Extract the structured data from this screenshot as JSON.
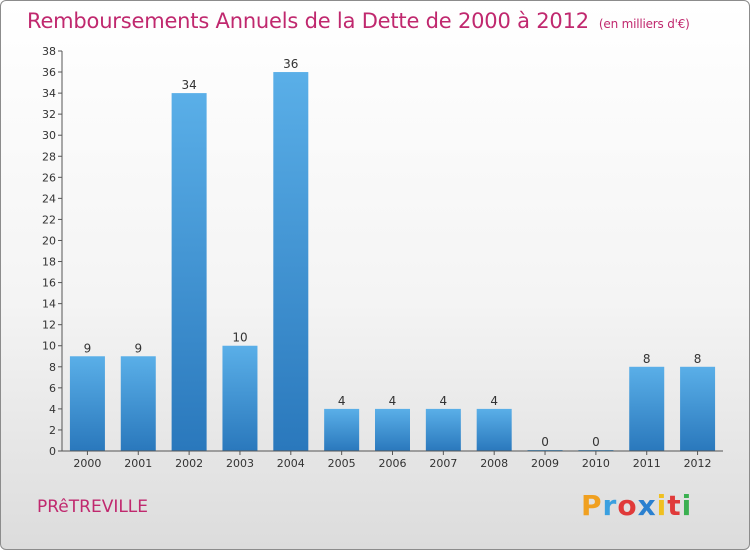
{
  "chart_data": {
    "type": "bar",
    "title": "Remboursements Annuels de la Dette de 2000 à 2012",
    "unit": "(en milliers d'€)",
    "categories": [
      "2000",
      "2001",
      "2002",
      "2003",
      "2004",
      "2005",
      "2006",
      "2007",
      "2008",
      "2009",
      "2010",
      "2011",
      "2012"
    ],
    "values": [
      9,
      9,
      34,
      10,
      36,
      4,
      4,
      4,
      4,
      0,
      0,
      8,
      8
    ],
    "ylim": [
      0,
      38
    ],
    "ytick_step": 2,
    "grid": false,
    "bar_color": "#3f96d8"
  },
  "town": "PRêTREVILLE",
  "logo": {
    "letters": [
      "P",
      "r",
      "o",
      "x",
      "i",
      "t",
      "i"
    ],
    "colors": [
      "#f0a020",
      "#3aa0e0",
      "#e03a3a",
      "#2a80d0",
      "#f0c020",
      "#e03a3a",
      "#3ab050"
    ]
  }
}
